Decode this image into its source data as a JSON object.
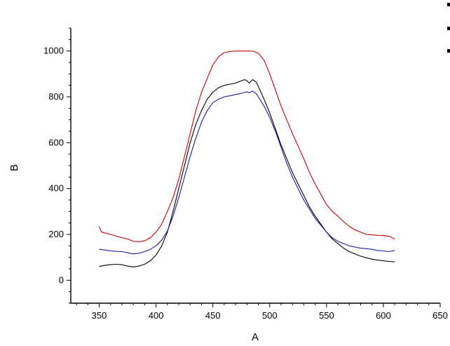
{
  "chart_data": {
    "type": "line",
    "title": "",
    "xlabel": "A",
    "ylabel": "B",
    "xlim": [
      325,
      650
    ],
    "ylim": [
      -100,
      1100
    ],
    "xticks": [
      350,
      400,
      450,
      500,
      550,
      600,
      650
    ],
    "yticks": [
      0,
      200,
      400,
      600,
      800,
      1000
    ],
    "grid": false,
    "legend": "top-right, clipped",
    "series": [
      {
        "color": "#cc0000",
        "x": [
          350,
          352,
          360,
          368,
          375,
          380,
          385,
          390,
          395,
          400,
          405,
          410,
          415,
          420,
          425,
          430,
          435,
          440,
          445,
          450,
          455,
          460,
          465,
          470,
          475,
          480,
          485,
          490,
          495,
          500,
          505,
          510,
          515,
          520,
          525,
          530,
          535,
          540,
          545,
          550,
          555,
          560,
          565,
          570,
          575,
          580,
          585,
          590,
          595,
          600,
          605,
          610
        ],
        "values": [
          235,
          210,
          200,
          188,
          180,
          170,
          168,
          172,
          185,
          210,
          245,
          300,
          360,
          440,
          540,
          640,
          740,
          820,
          880,
          940,
          975,
          993,
          998,
          1000,
          1000,
          1000,
          1000,
          990,
          960,
          900,
          830,
          760,
          700,
          640,
          585,
          530,
          470,
          420,
          375,
          330,
          300,
          280,
          255,
          235,
          220,
          210,
          200,
          198,
          196,
          195,
          192,
          180
        ]
      },
      {
        "color": "#000000",
        "x": [
          350,
          355,
          360,
          365,
          370,
          375,
          380,
          385,
          390,
          395,
          400,
          405,
          410,
          415,
          420,
          425,
          430,
          435,
          440,
          445,
          450,
          455,
          460,
          465,
          470,
          475,
          478,
          480,
          482,
          485,
          488,
          490,
          495,
          500,
          505,
          510,
          515,
          520,
          525,
          530,
          535,
          540,
          545,
          550,
          555,
          560,
          565,
          570,
          575,
          580,
          585,
          590,
          595,
          600,
          605,
          610
        ],
        "values": [
          60,
          65,
          68,
          70,
          68,
          62,
          58,
          62,
          70,
          85,
          110,
          150,
          210,
          300,
          400,
          500,
          600,
          680,
          740,
          790,
          820,
          840,
          850,
          855,
          860,
          870,
          875,
          870,
          860,
          875,
          865,
          845,
          790,
          730,
          660,
          590,
          530,
          470,
          420,
          370,
          320,
          280,
          245,
          210,
          180,
          160,
          140,
          125,
          115,
          105,
          98,
          92,
          88,
          85,
          82,
          80
        ]
      },
      {
        "color": "#1a1aaa",
        "x": [
          350,
          355,
          360,
          365,
          370,
          375,
          380,
          385,
          390,
          395,
          400,
          405,
          410,
          415,
          420,
          425,
          430,
          435,
          440,
          445,
          450,
          455,
          460,
          465,
          470,
          475,
          478,
          480,
          482,
          485,
          488,
          490,
          495,
          500,
          505,
          510,
          515,
          520,
          525,
          530,
          535,
          540,
          545,
          550,
          555,
          560,
          565,
          570,
          575,
          580,
          585,
          590,
          595,
          600,
          605,
          610
        ],
        "values": [
          135,
          132,
          128,
          126,
          125,
          120,
          115,
          118,
          125,
          135,
          150,
          175,
          215,
          280,
          360,
          450,
          540,
          620,
          690,
          740,
          775,
          790,
          800,
          805,
          810,
          815,
          820,
          822,
          818,
          825,
          815,
          800,
          760,
          710,
          650,
          580,
          510,
          450,
          400,
          350,
          310,
          270,
          240,
          210,
          185,
          170,
          160,
          150,
          145,
          140,
          138,
          135,
          130,
          128,
          125,
          130
        ]
      }
    ]
  }
}
